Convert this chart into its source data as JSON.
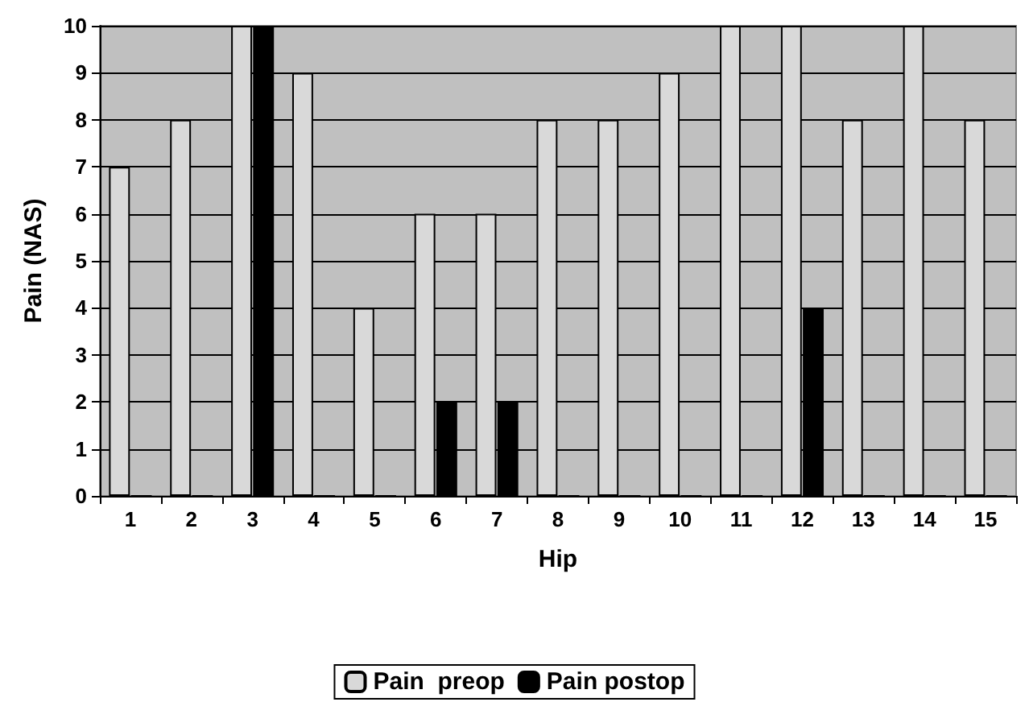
{
  "chart_data": {
    "type": "bar",
    "xlabel": "Hip",
    "ylabel": "Pain (NAS)",
    "categories": [
      "1",
      "2",
      "3",
      "4",
      "5",
      "6",
      "7",
      "8",
      "9",
      "10",
      "11",
      "12",
      "13",
      "14",
      "15"
    ],
    "series": [
      {
        "name": "Pain  preop",
        "color": "#d9d9d9",
        "values": [
          7,
          8,
          10,
          9,
          4,
          6,
          6,
          8,
          8,
          9,
          10,
          10,
          8,
          10,
          8
        ]
      },
      {
        "name": "Pain postop",
        "color": "#000000",
        "values": [
          0,
          0,
          10,
          0,
          0,
          2,
          2,
          0,
          0,
          0,
          0,
          4,
          0,
          0,
          0
        ]
      }
    ],
    "ylim": [
      0,
      10
    ],
    "yticks": [
      0,
      1,
      2,
      3,
      4,
      5,
      6,
      7,
      8,
      9,
      10
    ],
    "grid": "y",
    "legend": "bottom"
  }
}
